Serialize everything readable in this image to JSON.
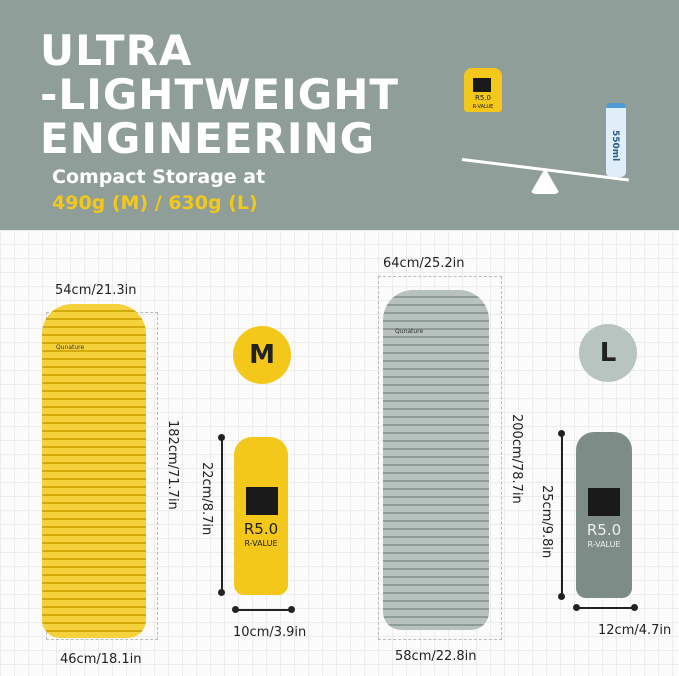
{
  "header": {
    "title_lines": [
      "ULTRA",
      "-LIGHTWEIGHT",
      "ENGINEERING"
    ],
    "subtitle": "Compact Storage at",
    "weights": "490g (M) / 630g (L)"
  },
  "illustration": {
    "bottle_label": "550ml",
    "bag_rating": "R5.0",
    "bag_rating_label": "R-VALUE"
  },
  "brand": "Qunature",
  "colors": {
    "yellow": "#f3c81a",
    "gray_mat": "#aab6b2",
    "header_bg": "#8f9e99"
  },
  "size_m": {
    "badge": "M",
    "mat_top_width": "54cm/21.3in",
    "mat_length": "182cm/71.7in",
    "mat_bottom_width": "46cm/18.1in",
    "bag_height": "22cm/8.7in",
    "bag_width": "10cm/3.9in",
    "rating": "R5.0",
    "rating_label": "R-VALUE"
  },
  "size_l": {
    "badge": "L",
    "mat_top_width": "64cm/25.2in",
    "mat_length": "200cm/78.7in",
    "mat_bottom_width": "58cm/22.8in",
    "bag_height": "25cm/9.8in",
    "bag_width": "12cm/4.7in",
    "rating": "R5.0",
    "rating_label": "R-VALUE"
  }
}
